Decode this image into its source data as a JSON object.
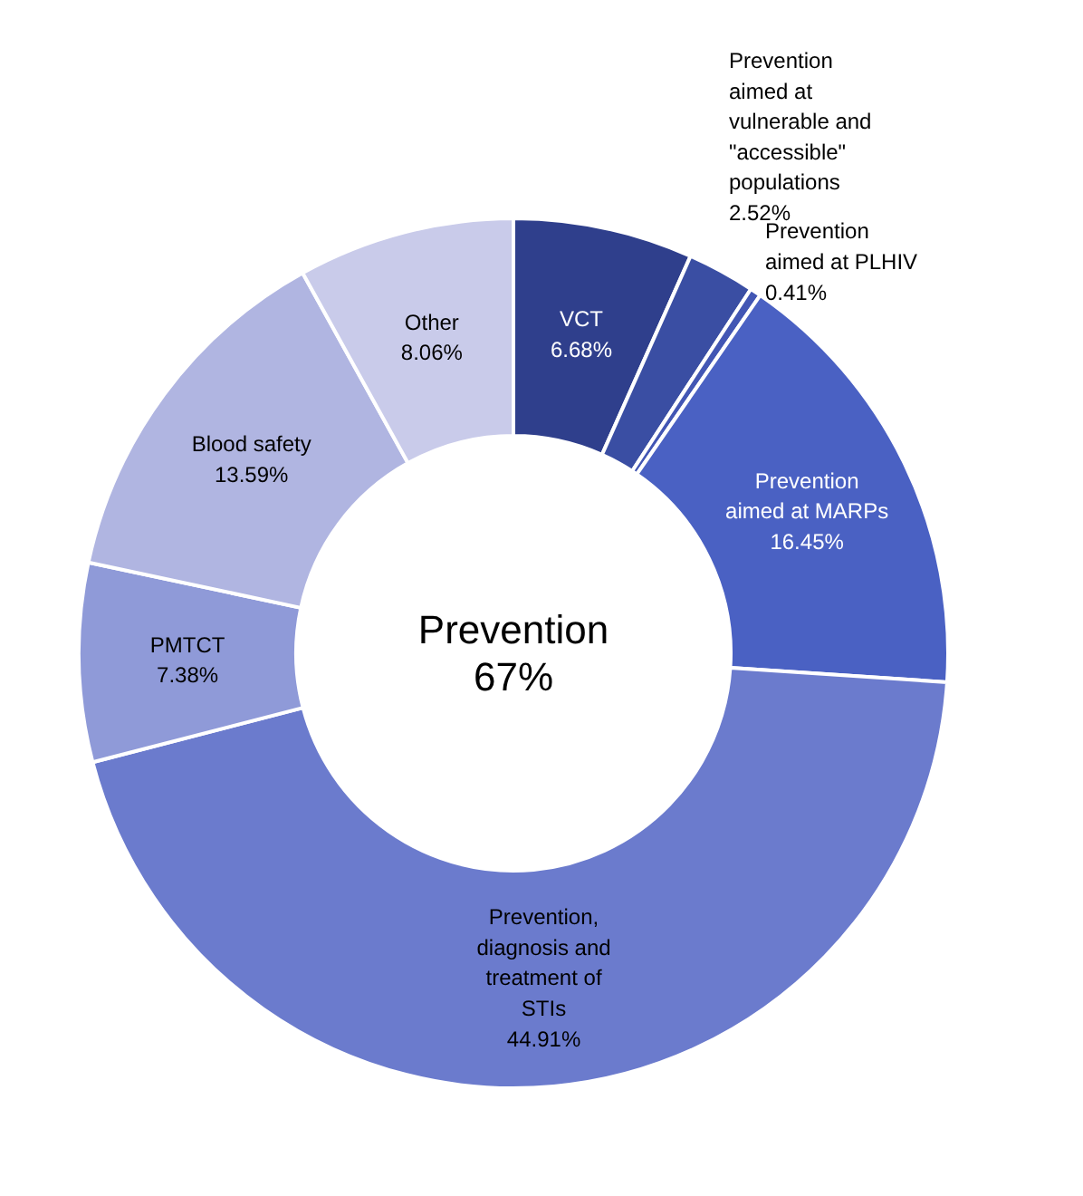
{
  "chart_data": {
    "type": "donut",
    "categories": [
      "VCT",
      "Prevention aimed at vulnerable and \"accessible\" populations",
      "Prevention aimed at PLHIV",
      "Prevention aimed at MARPs",
      "Prevention, diagnosis and treatment of STIs",
      "PMTCT",
      "Blood safety",
      "Other"
    ],
    "values": [
      6.68,
      2.52,
      0.41,
      16.45,
      44.91,
      7.38,
      13.59,
      8.06
    ],
    "value_labels": [
      "6.68%",
      "2.52%",
      "0.41%",
      "16.45%",
      "44.91%",
      "7.38%",
      "13.59%",
      "8.06%"
    ],
    "colors": [
      "#2f3f8c",
      "#3a4ea3",
      "#4256b4",
      "#4a61c3",
      "#6b7bcd",
      "#8f9ad8",
      "#b0b5e1",
      "#c9cbea"
    ],
    "annotations": [
      "Prevention",
      "67%"
    ]
  }
}
